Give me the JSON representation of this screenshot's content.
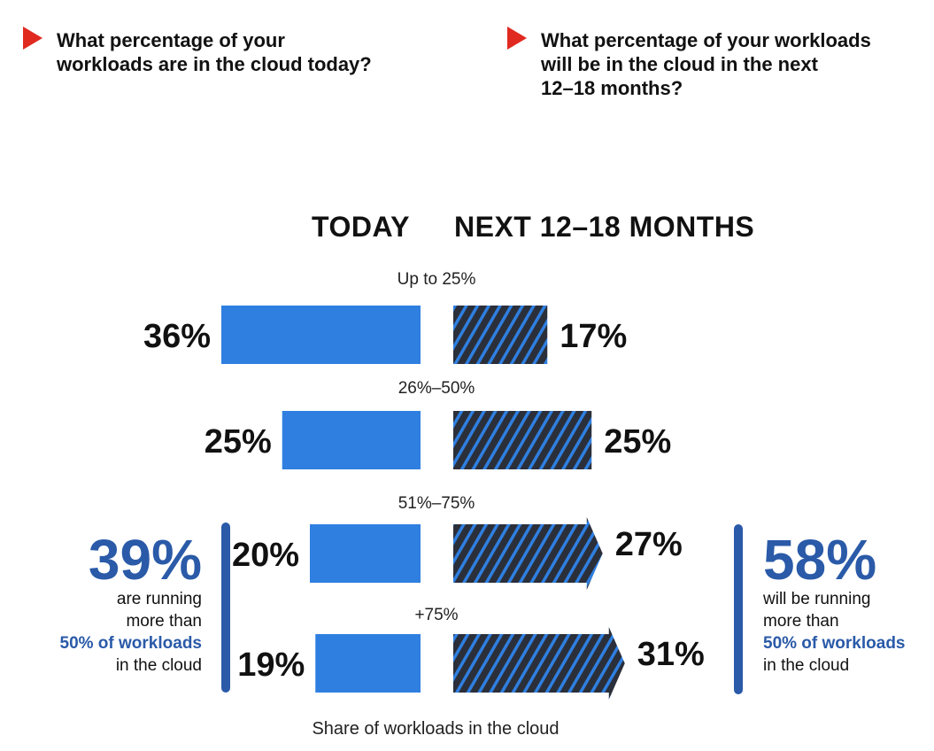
{
  "questions": {
    "left": "What percentage of your\nworkloads are in the cloud today?",
    "right": "What percentage of your workloads\nwill be in the cloud in the next\n12–18 months?"
  },
  "columns": {
    "today": "TODAY",
    "next": "NEXT 12–18 MONTHS"
  },
  "colors": {
    "today_bar": "#2f7fe0",
    "next_bar_base": "#2a2f3a",
    "next_bar_stripe": "#2f7fe0",
    "accent": "#2a5aa8",
    "marker": "#e02a20"
  },
  "chart_data": {
    "type": "bar",
    "orientation": "horizontal-diverging",
    "categories": [
      "Up to 25%",
      "26%–50%",
      "51%–75%",
      "+75%"
    ],
    "series": [
      {
        "name": "TODAY",
        "values": [
          36,
          25,
          20,
          19
        ]
      },
      {
        "name": "NEXT 12–18 MONTHS",
        "values": [
          17,
          25,
          27,
          31
        ]
      }
    ],
    "value_labels_today": [
      "36%",
      "25%",
      "20%",
      "19%"
    ],
    "value_labels_next": [
      "17%",
      "25%",
      "27%",
      "31%"
    ],
    "xlabel": "Share of workloads in the cloud",
    "grid": false,
    "legend": "none"
  },
  "callouts": {
    "left": {
      "value": "39%",
      "text1": "are running\nmore than",
      "highlight": "50% of workloads",
      "text2": "in the cloud"
    },
    "right": {
      "value": "58%",
      "text1": "will be running\nmore than",
      "highlight": "50% of workloads",
      "text2": "in the cloud"
    }
  }
}
